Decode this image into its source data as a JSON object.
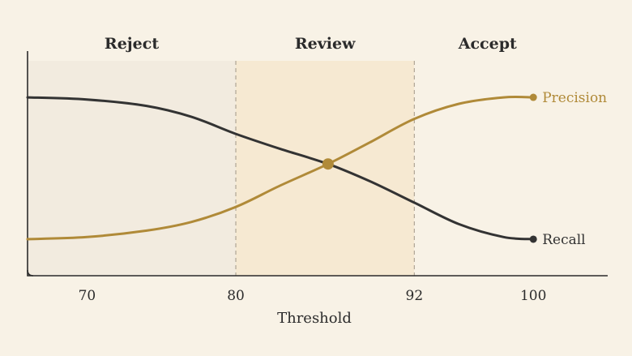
{
  "chart_data": {
    "type": "line",
    "title": "",
    "xlabel": "Threshold",
    "ylabel": "",
    "xlim": [
      66,
      105
    ],
    "ylim": [
      0,
      1
    ],
    "grid": false,
    "x_ticks": [
      70,
      80,
      92,
      100
    ],
    "x_tick_labels": [
      "70",
      "80",
      "92",
      "100"
    ],
    "zones": [
      {
        "label": "Reject",
        "from": 66,
        "to": 80,
        "color": "#f2ebdf"
      },
      {
        "label": "Review",
        "from": 80,
        "to": 92,
        "color": "#f6e9d2"
      },
      {
        "label": "Accept",
        "from": 92,
        "to": 100,
        "color": "#f8f2e6"
      }
    ],
    "zone_boundaries": [
      80,
      92
    ],
    "series": [
      {
        "name": "Precision",
        "color": "#b08a38",
        "x": [
          66,
          70,
          74,
          77,
          80,
          83,
          86.2,
          89,
          92,
          95,
          98,
          100
        ],
        "y": [
          0.17,
          0.18,
          0.21,
          0.25,
          0.32,
          0.42,
          0.52,
          0.62,
          0.73,
          0.8,
          0.83,
          0.83
        ]
      },
      {
        "name": "Recall",
        "color": "#333333",
        "x": [
          66,
          70,
          74,
          77,
          80,
          83,
          86.2,
          89,
          92,
          95,
          98,
          100
        ],
        "y": [
          0.83,
          0.82,
          0.79,
          0.74,
          0.66,
          0.59,
          0.52,
          0.44,
          0.34,
          0.24,
          0.18,
          0.17
        ]
      }
    ],
    "intersection": {
      "x": 86.2,
      "y": 0.52
    },
    "colors": {
      "background": "#f8f2e6",
      "axis": "#2b2b2b",
      "divider": "#a89f8f"
    }
  }
}
